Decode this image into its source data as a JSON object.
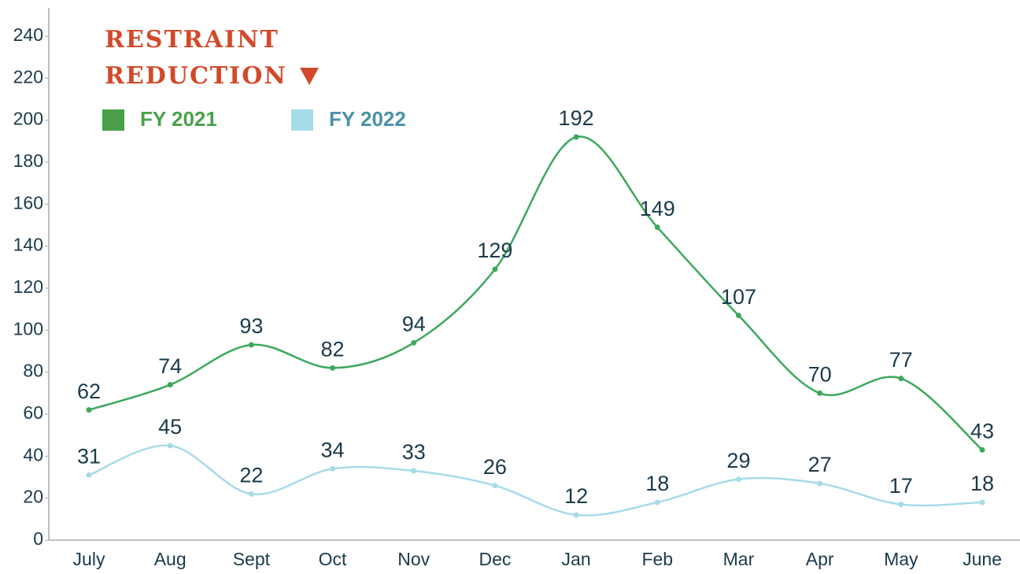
{
  "chart_data": {
    "type": "line",
    "title": "RESTRAINT REDUCTION",
    "categories": [
      "July",
      "Aug",
      "Sept",
      "Oct",
      "Nov",
      "Dec",
      "Jan",
      "Feb",
      "Mar",
      "Apr",
      "May",
      "June"
    ],
    "series": [
      {
        "name": "FY 2021",
        "color": "#3da85c",
        "legend_color": "#4aa04a",
        "values": [
          62,
          74,
          93,
          82,
          94,
          129,
          192,
          149,
          107,
          70,
          77,
          43
        ]
      },
      {
        "name": "FY 2022",
        "color": "#a6dbe8",
        "legend_color": "#4a92a8",
        "values": [
          31,
          45,
          22,
          34,
          33,
          26,
          12,
          18,
          29,
          27,
          17,
          18
        ]
      }
    ],
    "ylim": [
      0,
      240
    ],
    "yticks": [
      0,
      20,
      40,
      60,
      80,
      100,
      120,
      140,
      160,
      180,
      200,
      220,
      240
    ]
  }
}
